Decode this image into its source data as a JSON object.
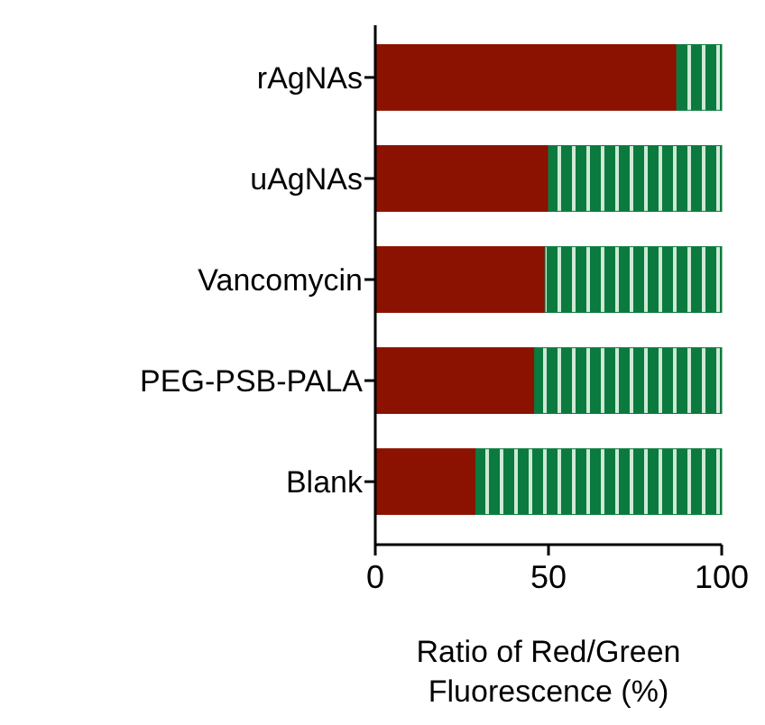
{
  "chart_data": {
    "type": "bar",
    "orientation": "horizontal",
    "stacked": true,
    "xlabel": "Ratio of Red/Green Fluorescence (%)",
    "categories": [
      "rAgNAs",
      "uAgNAs",
      "Vancomycin",
      "PEG-PSB-PALA",
      "Blank"
    ],
    "xlim": [
      0,
      100
    ],
    "xticks": [
      0,
      50,
      100
    ],
    "grid": false,
    "series": [
      {
        "color": "#8b1200",
        "values": [
          87,
          50,
          49,
          46,
          29
        ]
      },
      {
        "color": "#0b7a3e",
        "values": [
          13,
          50,
          51,
          54,
          71
        ]
      }
    ]
  }
}
